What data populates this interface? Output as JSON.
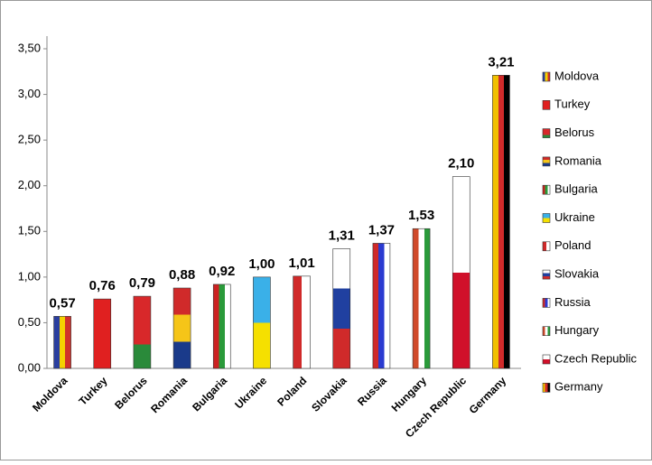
{
  "chart_data": {
    "type": "bar",
    "categories": [
      "Moldova",
      "Turkey",
      "Belorus",
      "Romania",
      "Bulgaria",
      "Ukraine",
      "Poland",
      "Slovakia",
      "Russia",
      "Hungary",
      "Czech Republic",
      "Germany"
    ],
    "values": [
      0.57,
      0.76,
      0.79,
      0.88,
      0.92,
      1.0,
      1.01,
      1.31,
      1.37,
      1.53,
      2.1,
      3.21
    ],
    "value_labels": [
      "0,57",
      "0,76",
      "0,79",
      "0,88",
      "0,92",
      "1,00",
      "1,01",
      "1,31",
      "1,37",
      "1,53",
      "2,10",
      "3,21"
    ],
    "stripes": [
      "v",
      "v",
      "h",
      "h",
      "v",
      "h",
      "v",
      "h",
      "v",
      "v",
      "h",
      "v"
    ],
    "colors": [
      [
        "#2a3fa0",
        "#f5d000",
        "#d0302a"
      ],
      [
        "#e02020"
      ],
      [
        "#d8282a",
        "#d8282a",
        "#2a8a3a"
      ],
      [
        "#d02a2a",
        "#f5c518",
        "#1a3a8a"
      ],
      [
        "#cc2222",
        "#2a9a3a",
        "#ffffff"
      ],
      [
        "#3ab0e8",
        "#f5e000"
      ],
      [
        "#d02a2a",
        "#ffffff"
      ],
      [
        "#ffffff",
        "#2040a0",
        "#d02a2a"
      ],
      [
        "#d02a2a",
        "#2a3ad0",
        "#ffffff"
      ],
      [
        "#d04a2a",
        "#ffffff",
        "#2a9a3a"
      ],
      [
        "#ffffff",
        "#d0102a"
      ],
      [
        "#f0c000",
        "#d02a2a",
        "#000000"
      ]
    ],
    "ylim": [
      0,
      3.5
    ],
    "yticks": [
      {
        "value": 0,
        "label": "0,00"
      },
      {
        "value": 0.5,
        "label": "0,50"
      },
      {
        "value": 1,
        "label": "1,00"
      },
      {
        "value": 1.5,
        "label": "1,50"
      },
      {
        "value": 2,
        "label": "2,00"
      },
      {
        "value": 2.5,
        "label": "2,50"
      },
      {
        "value": 3,
        "label": "3,00"
      },
      {
        "value": 3.5,
        "label": "3,50"
      }
    ],
    "grid": false
  }
}
